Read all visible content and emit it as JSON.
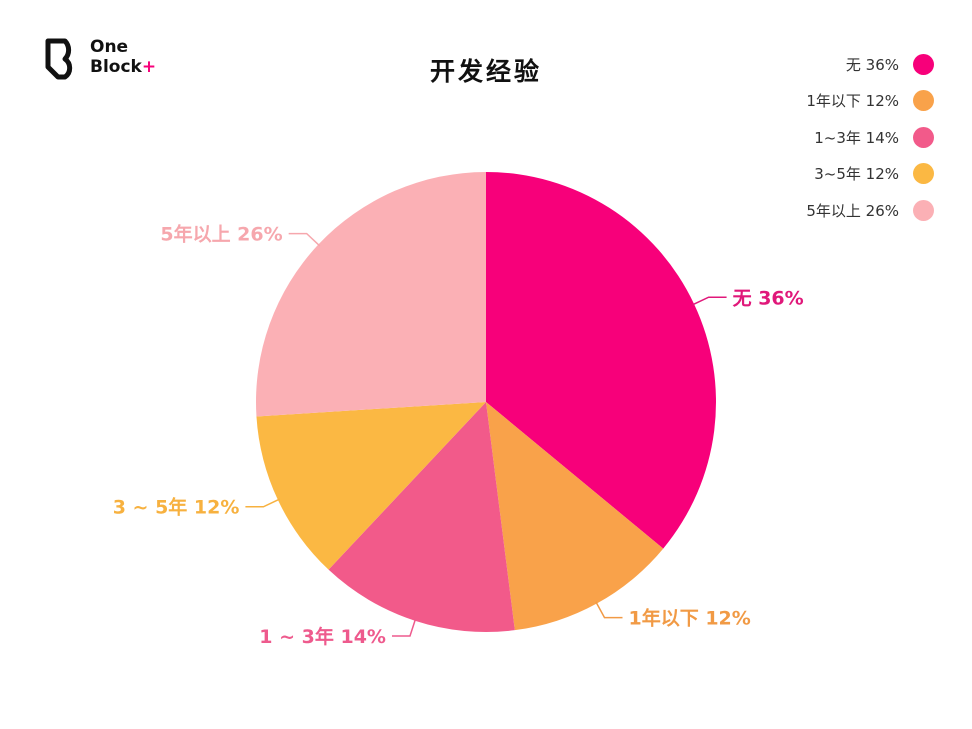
{
  "logo": {
    "line1": "One",
    "line2": "Block",
    "plus": "+"
  },
  "title": "开发经验",
  "chart_data": {
    "type": "pie",
    "title": "开发经验",
    "start_angle_deg": 0,
    "direction": "clockwise",
    "legend_position": "top-right",
    "slices": [
      {
        "name": "无",
        "value": 36,
        "label": "无 36%",
        "outside_label": "无 36%",
        "color": "#f7007a",
        "label_color": "#e0187a"
      },
      {
        "name": "1年以下",
        "value": 12,
        "label": "1年以下 12%",
        "outside_label": "1年以下 12%",
        "color": "#f9a24a",
        "label_color": "#f19a45"
      },
      {
        "name": "1~3年",
        "value": 14,
        "label": "1~3年 14%",
        "outside_label": "1 ~ 3年 14%",
        "color": "#f25a8a",
        "label_color": "#ee5a8d"
      },
      {
        "name": "3~5年",
        "value": 12,
        "label": "3~5年 12%",
        "outside_label": "3 ~ 5年 12%",
        "color": "#fbb843",
        "label_color": "#f7b13f"
      },
      {
        "name": "5年以上",
        "value": 26,
        "label": "5年以上 26%",
        "outside_label": "5年以上 26%",
        "color": "#fbb0b5",
        "label_color": "#f6a7ad"
      }
    ]
  }
}
